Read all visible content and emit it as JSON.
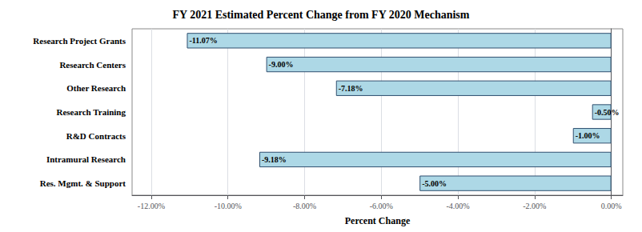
{
  "chart_data": {
    "type": "bar",
    "orientation": "horizontal",
    "title": "FY 2021 Estimated Percent Change from FY 2020 Mechanism",
    "xlabel": "Percent Change",
    "categories": [
      "Research Project Grants",
      "Research Centers",
      "Other Research",
      "Research Training",
      "R&D Contracts",
      "Intramural Research",
      "Res. Mgmt. & Support"
    ],
    "values": [
      -11.07,
      -9.0,
      -7.18,
      -0.5,
      -1.0,
      -9.18,
      -5.0
    ],
    "value_labels": [
      "-11.07%",
      "-9.00%",
      "-7.18%",
      "-0.50%",
      "-1.00%",
      "-9.18%",
      "-5.00%"
    ],
    "data_labels": true,
    "color": "#ADD8E6",
    "xlim": [
      -12.5,
      0.3
    ],
    "xticks": [
      {
        "value": -12,
        "label": "-12.00%"
      },
      {
        "value": -10,
        "label": "-10.00%"
      },
      {
        "value": -8,
        "label": "-8.00%"
      },
      {
        "value": -6,
        "label": "-6.00%"
      },
      {
        "value": -4,
        "label": "-4.00%"
      },
      {
        "value": -2,
        "label": "-2.00%"
      },
      {
        "value": 0,
        "label": "0.00%"
      }
    ],
    "grid": true
  }
}
